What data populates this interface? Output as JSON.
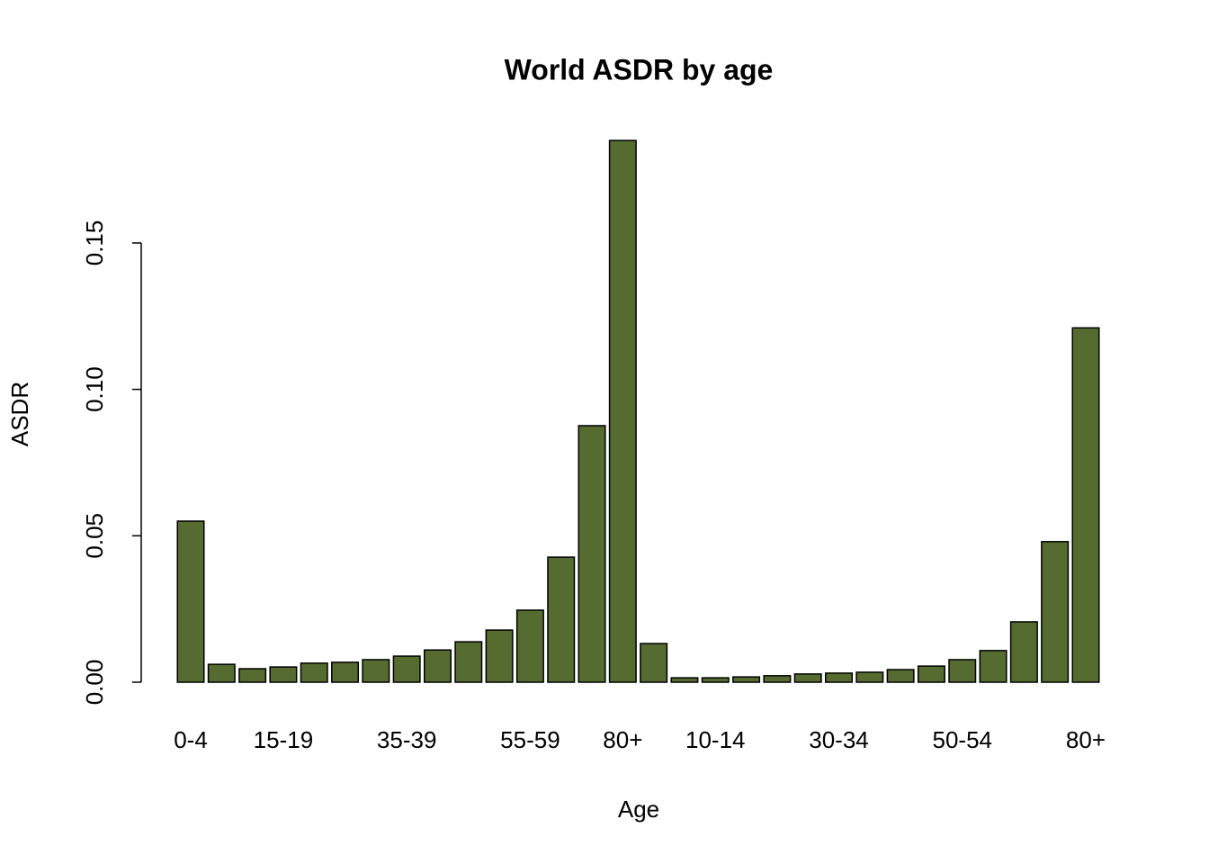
{
  "chart_data": {
    "type": "bar",
    "title": "World ASDR by age",
    "x_label": "Age",
    "y_label": "ASDR",
    "categories": [
      "0-4",
      null,
      null,
      "15-19",
      null,
      null,
      null,
      "35-39",
      null,
      null,
      null,
      "55-59",
      null,
      null,
      "80+",
      null,
      null,
      "10-14",
      null,
      null,
      null,
      "30-34",
      null,
      null,
      null,
      "50-54",
      null,
      null,
      null,
      "80+"
    ],
    "values": [
      0.055,
      0.0061,
      0.0046,
      0.0052,
      0.0065,
      0.0068,
      0.0077,
      0.0089,
      0.011,
      0.0138,
      0.0178,
      0.0246,
      0.0427,
      0.0876,
      0.185,
      0.0132,
      0.0015,
      0.0015,
      0.0018,
      0.0022,
      0.0028,
      0.0031,
      0.0034,
      0.0043,
      0.0055,
      0.0077,
      0.0108,
      0.0206,
      0.048,
      0.121
    ],
    "color": "#556b2f",
    "ylim": [
      0,
      0.1924
    ],
    "yticks": [
      {
        "value": 0,
        "label": "0.00"
      },
      0.05,
      {
        "value": 0.1,
        "label": "0.10"
      },
      0.15
    ]
  }
}
